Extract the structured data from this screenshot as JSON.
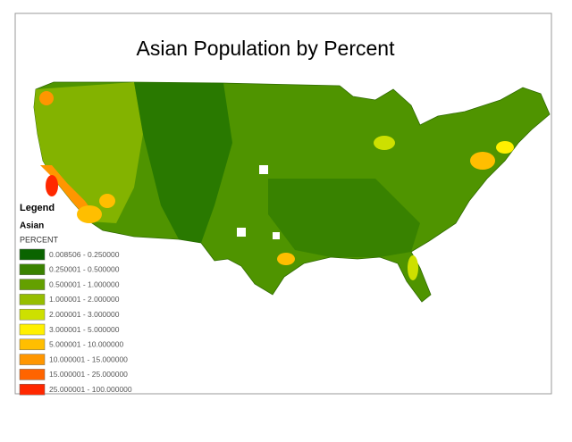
{
  "title": "Asian Population by Percent",
  "legend": {
    "heading": "Legend",
    "layer": "Asian",
    "field": "PERCENT",
    "items": [
      {
        "label": "0.008506 - 0.250000",
        "color": "#0a6400"
      },
      {
        "label": "0.250001 - 0.500000",
        "color": "#3a8200"
      },
      {
        "label": "0.500001 - 1.000000",
        "color": "#64a000"
      },
      {
        "label": "1.000001 - 2.000000",
        "color": "#96be00"
      },
      {
        "label": "2.000001 - 3.000000",
        "color": "#cde000"
      },
      {
        "label": "3.000001 - 5.000000",
        "color": "#fff000"
      },
      {
        "label": "5.000001 - 10.000000",
        "color": "#ffbe00"
      },
      {
        "label": "10.000001 - 15.000000",
        "color": "#ff9600"
      },
      {
        "label": "15.000001 - 25.000000",
        "color": "#ff6400"
      },
      {
        "label": "25.000001 - 100.000000",
        "color": "#ff2800"
      }
    ]
  }
}
